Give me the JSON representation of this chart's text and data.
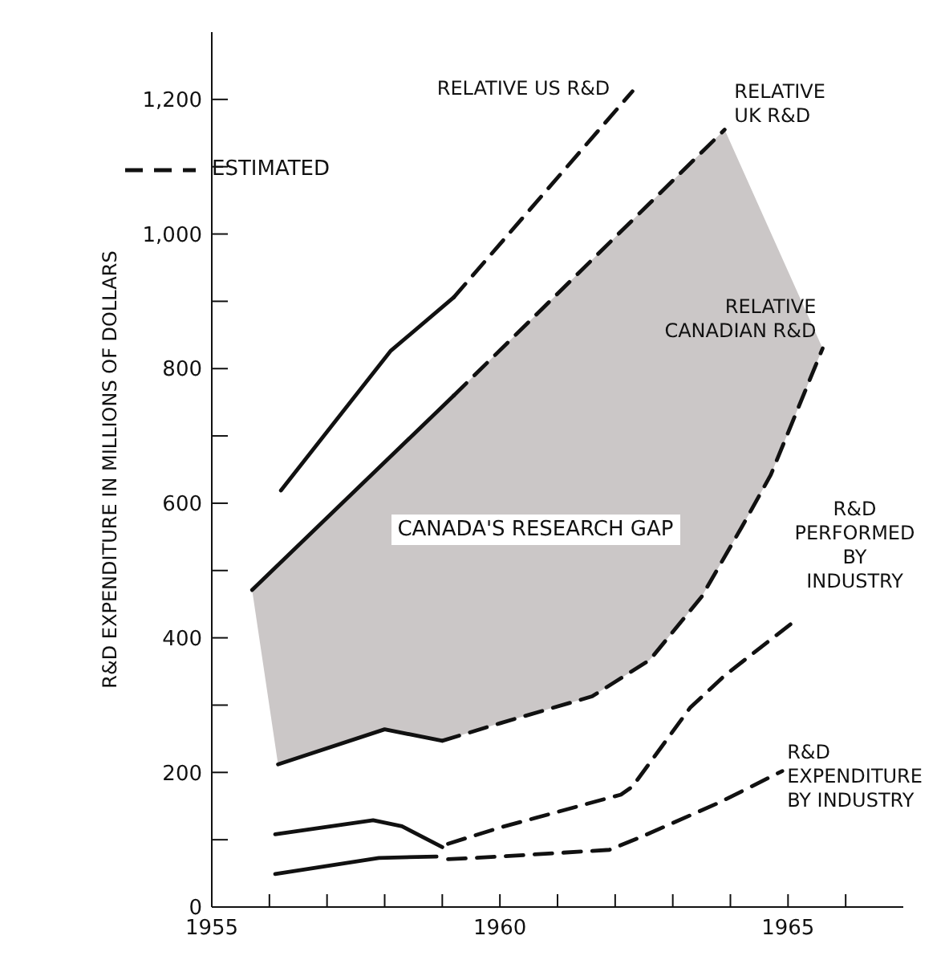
{
  "chart_data": {
    "type": "line",
    "ylabel": "R&D EXPENDITURE IN MILLIONS OF DOLLARS",
    "xlim": [
      1955,
      1967
    ],
    "xticks": [
      1955,
      {
        "value": 1956,
        "label": null
      },
      {
        "value": 1957,
        "label": null
      },
      {
        "value": 1958,
        "label": null
      },
      {
        "value": 1959,
        "label": null
      },
      1960,
      {
        "value": 1961,
        "label": null
      },
      {
        "value": 1962,
        "label": null
      },
      {
        "value": 1963,
        "label": null
      },
      {
        "value": 1964,
        "label": null
      },
      1965,
      {
        "value": 1966,
        "label": null
      }
    ],
    "ylim": [
      0,
      1300
    ],
    "yticks": [
      0,
      {
        "value": 100,
        "label": null
      },
      200,
      {
        "value": 300,
        "label": null
      },
      400,
      {
        "value": 500,
        "label": null
      },
      600,
      {
        "value": 700,
        "label": null
      },
      800,
      {
        "value": 900,
        "label": null
      },
      {
        "value": 1000,
        "label": "1,000"
      },
      {
        "value": 1100,
        "label": null
      },
      {
        "value": 1200,
        "label": "1,200"
      }
    ],
    "grid": false,
    "legend": false,
    "annotations": [
      "ESTIMATED",
      "CANADA'S RESEARCH GAP"
    ],
    "series": [
      {
        "color": "#111111",
        "line_style": "solid",
        "x": [
          1956.2,
          1958.1,
          1959.2
        ],
        "values": [
          619,
          826,
          906
        ]
      },
      {
        "name": "RELATIVE US R&D",
        "color": "#111111",
        "line_style": "dashed",
        "x": [
          1959.2,
          1962.3
        ],
        "values": [
          906,
          1212
        ]
      },
      {
        "color": "#111111",
        "line_style": "solid",
        "x": [
          1955.7,
          1959.2
        ],
        "values": [
          471,
          760
        ]
      },
      {
        "name": "RELATIVE UK R&D",
        "color": "#111111",
        "line_style": "dashed",
        "x": [
          1959.2,
          1963.9
        ],
        "values": [
          760,
          1155
        ]
      },
      {
        "color": "#111111",
        "line_style": "solid",
        "x": [
          1956.15,
          1958,
          1959
        ],
        "values": [
          212,
          264,
          247
        ]
      },
      {
        "name": "RELATIVE CANADIAN R&D",
        "color": "#111111",
        "line_style": "dashed",
        "x": [
          1959,
          1960,
          1961.6,
          1962.6,
          1963.5,
          1964.2,
          1964.7,
          1965.6
        ],
        "values": [
          247,
          273,
          313,
          367,
          461,
          565,
          642,
          830
        ]
      },
      {
        "color": "#111111",
        "line_style": "solid",
        "x": [
          1956.1,
          1957.8,
          1958.3,
          1959
        ],
        "values": [
          108,
          129,
          120,
          89
        ]
      },
      {
        "name": "R&D PERFORMED BY INDUSTRY",
        "color": "#111111",
        "line_style": "dashed",
        "x": [
          1959.1,
          1960,
          1962.1,
          1962.3,
          1963.3,
          1963.9,
          1965.1
        ],
        "values": [
          94,
          118,
          167,
          179,
          296,
          344,
          424
        ]
      },
      {
        "color": "#111111",
        "line_style": "solid",
        "x": [
          1956.1,
          1957.9,
          1958.9
        ],
        "values": [
          49,
          73,
          75
        ]
      },
      {
        "name": "R&D EXPENDITURE BY INDUSTRY",
        "color": "#111111",
        "line_style": "dashed",
        "x": [
          1959.1,
          1960,
          1961.9,
          1962.5,
          1963.8,
          1964.9
        ],
        "values": [
          71,
          75,
          85,
          106,
          155,
          202
        ]
      }
    ]
  }
}
